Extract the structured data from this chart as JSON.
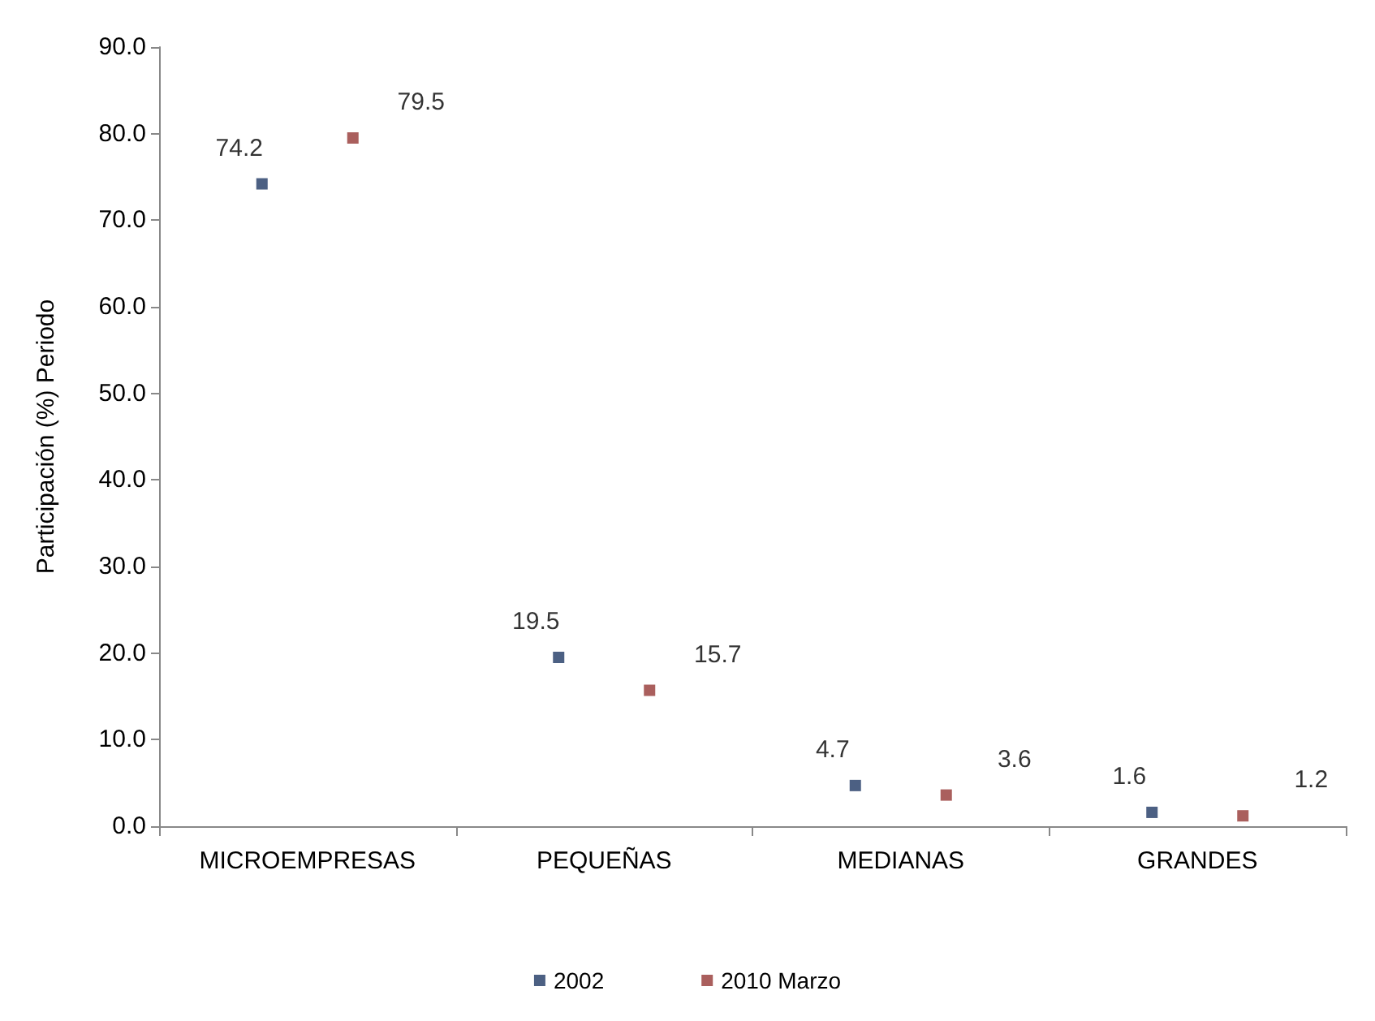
{
  "chart_data": {
    "type": "scatter",
    "ylabel": "Participación (%) Periodo",
    "categories": [
      "MICROEMPRESAS",
      "PEQUEÑAS",
      "MEDIANAS",
      "GRANDES"
    ],
    "series": [
      {
        "name": "2002",
        "color": "#1f3864",
        "values": [
          74.2,
          19.5,
          4.7,
          1.6
        ]
      },
      {
        "name": "2010 Marzo",
        "color": "#953735",
        "values": [
          79.5,
          15.7,
          3.6,
          1.2
        ]
      }
    ],
    "ylim": [
      0,
      90
    ],
    "yticks": [
      {
        "value": 0,
        "label": "0.0"
      },
      {
        "value": 10,
        "label": "10.0"
      },
      {
        "value": 20,
        "label": "20.0"
      },
      {
        "value": 30,
        "label": "30.0"
      },
      {
        "value": 40,
        "label": "40.0"
      },
      {
        "value": 50,
        "label": "50.0"
      },
      {
        "value": 60,
        "label": "60.0"
      },
      {
        "value": 70,
        "label": "70.0"
      },
      {
        "value": 80,
        "label": "80.0"
      },
      {
        "value": 90,
        "label": "90.0"
      }
    ],
    "grid": false,
    "legend": "bottom",
    "marker": "square",
    "data_labels": true
  }
}
